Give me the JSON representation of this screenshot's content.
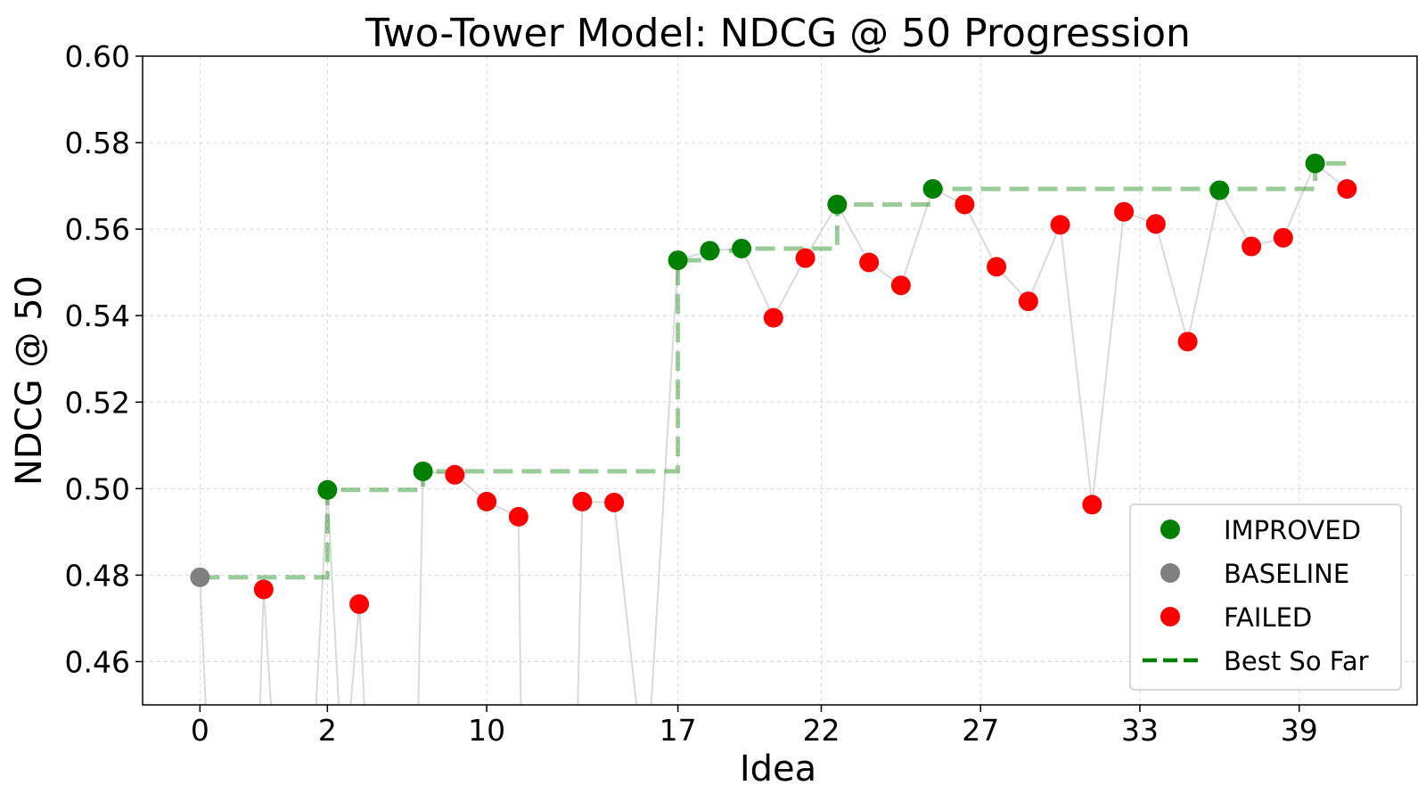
{
  "chart_data": {
    "type": "scatter",
    "title": "Two-Tower Model: NDCG @ 50 Progression",
    "xlabel": "Idea",
    "ylabel": "NDCG @ 50",
    "ylim": [
      0.45,
      0.6
    ],
    "yticks": [
      "0.46",
      "0.48",
      "0.50",
      "0.52",
      "0.54",
      "0.56",
      "0.58",
      "0.60"
    ],
    "xtick_labels": [
      "0",
      "2",
      "10",
      "17",
      "22",
      "27",
      "33",
      "39"
    ],
    "xtick_positions": [
      0,
      4,
      9,
      15,
      19.5,
      24.5,
      29.5,
      34.5
    ],
    "grid": true,
    "legend_position": "lower-right",
    "colors": {
      "IMPROVED": "#008000",
      "BASELINE": "#808080",
      "FAILED": "#ff0000",
      "best_line": "#008000",
      "connector": "#d9d9d9"
    },
    "series": [
      {
        "name": "IMPROVED",
        "marker": "circle"
      },
      {
        "name": "BASELINE",
        "marker": "circle"
      },
      {
        "name": "FAILED",
        "marker": "circle"
      },
      {
        "name": "Best So Far",
        "marker": "dashed-line"
      }
    ],
    "trials": [
      {
        "x": 0,
        "y": 0.4795,
        "status": "BASELINE"
      },
      {
        "x": 0.3,
        "y": 0.43,
        "status": "HIDDEN"
      },
      {
        "x": 1.8,
        "y": 0.43,
        "status": "HIDDEN"
      },
      {
        "x": 2,
        "y": 0.4767,
        "status": "FAILED"
      },
      {
        "x": 2.4,
        "y": 0.43,
        "status": "HIDDEN"
      },
      {
        "x": 3.5,
        "y": 0.43,
        "status": "HIDDEN"
      },
      {
        "x": 4,
        "y": 0.4997,
        "status": "IMPROVED"
      },
      {
        "x": 4.5,
        "y": 0.43,
        "status": "HIDDEN"
      },
      {
        "x": 5,
        "y": 0.4733,
        "status": "FAILED"
      },
      {
        "x": 5.3,
        "y": 0.43,
        "status": "HIDDEN"
      },
      {
        "x": 6.8,
        "y": 0.43,
        "status": "HIDDEN"
      },
      {
        "x": 7,
        "y": 0.504,
        "status": "IMPROVED"
      },
      {
        "x": 8,
        "y": 0.5032,
        "status": "FAILED"
      },
      {
        "x": 9,
        "y": 0.497,
        "status": "FAILED"
      },
      {
        "x": 10,
        "y": 0.4935,
        "status": "FAILED"
      },
      {
        "x": 10.1,
        "y": 0.43,
        "status": "HIDDEN"
      },
      {
        "x": 11.8,
        "y": 0.43,
        "status": "HIDDEN"
      },
      {
        "x": 12,
        "y": 0.497,
        "status": "FAILED"
      },
      {
        "x": 13,
        "y": 0.4968,
        "status": "FAILED"
      },
      {
        "x": 14,
        "y": 0.43,
        "status": "HIDDEN"
      },
      {
        "x": 15,
        "y": 0.5528,
        "status": "IMPROVED"
      },
      {
        "x": 16,
        "y": 0.555,
        "status": "IMPROVED"
      },
      {
        "x": 17,
        "y": 0.5555,
        "status": "IMPROVED"
      },
      {
        "x": 18,
        "y": 0.5395,
        "status": "FAILED"
      },
      {
        "x": 19,
        "y": 0.5533,
        "status": "FAILED"
      },
      {
        "x": 20,
        "y": 0.5657,
        "status": "IMPROVED"
      },
      {
        "x": 21,
        "y": 0.5523,
        "status": "FAILED"
      },
      {
        "x": 22,
        "y": 0.547,
        "status": "FAILED"
      },
      {
        "x": 23,
        "y": 0.5693,
        "status": "IMPROVED"
      },
      {
        "x": 24,
        "y": 0.5657,
        "status": "FAILED"
      },
      {
        "x": 25,
        "y": 0.5513,
        "status": "FAILED"
      },
      {
        "x": 26,
        "y": 0.5433,
        "status": "FAILED"
      },
      {
        "x": 27,
        "y": 0.561,
        "status": "FAILED"
      },
      {
        "x": 28,
        "y": 0.4963,
        "status": "FAILED"
      },
      {
        "x": 29,
        "y": 0.564,
        "status": "FAILED"
      },
      {
        "x": 30,
        "y": 0.5612,
        "status": "FAILED"
      },
      {
        "x": 31,
        "y": 0.534,
        "status": "FAILED"
      },
      {
        "x": 32,
        "y": 0.569,
        "status": "IMPROVED"
      },
      {
        "x": 33,
        "y": 0.556,
        "status": "FAILED"
      },
      {
        "x": 34,
        "y": 0.558,
        "status": "FAILED"
      },
      {
        "x": 35,
        "y": 0.5752,
        "status": "IMPROVED"
      },
      {
        "x": 36,
        "y": 0.5693,
        "status": "FAILED"
      }
    ],
    "best_so_far": [
      {
        "x": 0,
        "y": 0.4795
      },
      {
        "x": 4,
        "y": 0.4997
      },
      {
        "x": 7,
        "y": 0.504
      },
      {
        "x": 15,
        "y": 0.5528
      },
      {
        "x": 16,
        "y": 0.555
      },
      {
        "x": 17,
        "y": 0.5555
      },
      {
        "x": 20,
        "y": 0.5657
      },
      {
        "x": 23,
        "y": 0.5693
      },
      {
        "x": 35,
        "y": 0.5752
      },
      {
        "x": 36,
        "y": 0.5752
      }
    ],
    "legend": [
      "IMPROVED",
      "BASELINE",
      "FAILED",
      "Best So Far"
    ]
  }
}
